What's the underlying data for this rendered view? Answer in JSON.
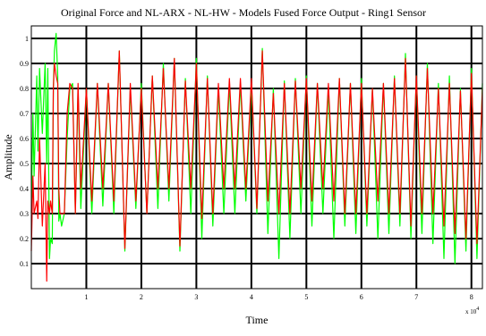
{
  "chart_data": {
    "type": "line",
    "title": "Original Force and NL-ARX - NL-HW - Models Fused Force Output - Ring1 Sensor",
    "xlabel": "Time",
    "ylabel": "Amplitude",
    "x_exponent_label": "x 10",
    "x_exponent_power": "4",
    "xlim": [
      0,
      8.2
    ],
    "ylim": [
      0,
      1.05
    ],
    "xticks": [
      1,
      2,
      3,
      4,
      5,
      6,
      7,
      8
    ],
    "xtick_labels": [
      "1",
      "2",
      "3",
      "4",
      "5",
      "6",
      "7",
      "8"
    ],
    "yticks": [
      0.1,
      0.2,
      0.3,
      0.4,
      0.5,
      0.6,
      0.7,
      0.8,
      0.9,
      1
    ],
    "ytick_labels": [
      "0.1",
      "0.2",
      "0.3",
      "0.4",
      "0.5",
      "0.6",
      "0.7",
      "0.8",
      "0.9",
      "1"
    ],
    "grid": true,
    "series": [
      {
        "color": "#00ff00",
        "x": [
          0,
          0.03,
          0.05,
          0.1,
          0.12,
          0.15,
          0.2,
          0.25,
          0.28,
          0.3,
          0.33,
          0.35,
          0.38,
          0.4,
          0.42,
          0.45,
          0.48,
          0.5,
          0.52,
          0.55,
          0.6,
          0.65,
          0.7,
          0.75,
          0.8,
          0.85,
          0.9,
          1.0,
          1.1,
          1.2,
          1.3,
          1.4,
          1.5,
          1.6,
          1.7,
          1.8,
          1.9,
          2.0,
          2.1,
          2.2,
          2.3,
          2.4,
          2.5,
          2.6,
          2.7,
          2.8,
          2.9,
          3.0,
          3.1,
          3.2,
          3.3,
          3.4,
          3.5,
          3.6,
          3.7,
          3.8,
          3.9,
          4.0,
          4.1,
          4.2,
          4.3,
          4.4,
          4.5,
          4.6,
          4.7,
          4.8,
          4.9,
          5.0,
          5.1,
          5.2,
          5.3,
          5.4,
          5.5,
          5.6,
          5.7,
          5.8,
          5.9,
          6.0,
          6.1,
          6.2,
          6.3,
          6.4,
          6.5,
          6.6,
          6.7,
          6.8,
          6.9,
          7.0,
          7.1,
          7.2,
          7.3,
          7.4,
          7.5,
          7.6,
          7.7,
          7.8,
          7.9,
          8.0,
          8.1,
          8.2
        ],
        "y": [
          0.3,
          0.7,
          0.45,
          0.85,
          0.55,
          0.88,
          0.62,
          0.9,
          0.5,
          0.88,
          0.12,
          0.2,
          0.18,
          0.8,
          0.95,
          1.02,
          0.85,
          0.27,
          0.3,
          0.25,
          0.3,
          0.6,
          0.8,
          0.82,
          0.3,
          0.8,
          0.32,
          0.8,
          0.3,
          0.82,
          0.33,
          0.82,
          0.3,
          0.95,
          0.15,
          0.8,
          0.32,
          0.82,
          0.3,
          0.85,
          0.32,
          0.9,
          0.35,
          0.92,
          0.15,
          0.84,
          0.3,
          0.92,
          0.2,
          0.85,
          0.25,
          0.8,
          0.3,
          0.82,
          0.3,
          0.82,
          0.35,
          0.82,
          0.3,
          0.96,
          0.22,
          0.8,
          0.12,
          0.83,
          0.2,
          0.84,
          0.3,
          0.85,
          0.25,
          0.82,
          0.3,
          0.8,
          0.2,
          0.84,
          0.25,
          0.82,
          0.22,
          0.84,
          0.25,
          0.8,
          0.2,
          0.82,
          0.22,
          0.85,
          0.25,
          0.94,
          0.2,
          0.85,
          0.22,
          0.9,
          0.18,
          0.82,
          0.12,
          0.85,
          0.1,
          0.8,
          0.15,
          0.88,
          0.12,
          0.82
        ]
      },
      {
        "color": "#ff0000",
        "x": [
          0,
          0.03,
          0.05,
          0.1,
          0.12,
          0.15,
          0.2,
          0.25,
          0.28,
          0.3,
          0.33,
          0.35,
          0.38,
          0.4,
          0.42,
          0.45,
          0.48,
          0.5,
          0.52,
          0.55,
          0.6,
          0.65,
          0.7,
          0.75,
          0.8,
          0.85,
          0.9,
          1.0,
          1.1,
          1.2,
          1.3,
          1.4,
          1.5,
          1.6,
          1.7,
          1.8,
          1.9,
          2.0,
          2.1,
          2.2,
          2.3,
          2.4,
          2.5,
          2.6,
          2.7,
          2.8,
          2.9,
          3.0,
          3.1,
          3.2,
          3.3,
          3.4,
          3.5,
          3.6,
          3.7,
          3.8,
          3.9,
          4.0,
          4.1,
          4.2,
          4.3,
          4.4,
          4.5,
          4.6,
          4.7,
          4.8,
          4.9,
          5.0,
          5.1,
          5.2,
          5.3,
          5.4,
          5.5,
          5.6,
          5.7,
          5.8,
          5.9,
          6.0,
          6.1,
          6.2,
          6.3,
          6.4,
          6.5,
          6.6,
          6.7,
          6.8,
          6.9,
          7.0,
          7.1,
          7.2,
          7.3,
          7.4,
          7.5,
          7.6,
          7.7,
          7.8,
          7.9,
          8.0,
          8.1,
          8.2
        ],
        "y": [
          0.15,
          0.45,
          0.3,
          0.35,
          0.28,
          0.6,
          0.25,
          0.5,
          0.03,
          0.35,
          0.3,
          0.35,
          0.3,
          0.8,
          0.9,
          0.85,
          0.82,
          0.4,
          0.3,
          0.3,
          0.3,
          0.7,
          0.82,
          0.8,
          0.3,
          0.82,
          0.4,
          0.8,
          0.35,
          0.82,
          0.4,
          0.82,
          0.35,
          0.95,
          0.16,
          0.82,
          0.35,
          0.8,
          0.3,
          0.85,
          0.4,
          0.88,
          0.4,
          0.92,
          0.17,
          0.83,
          0.4,
          0.9,
          0.28,
          0.84,
          0.3,
          0.82,
          0.4,
          0.84,
          0.4,
          0.84,
          0.4,
          0.84,
          0.32,
          0.95,
          0.35,
          0.78,
          0.3,
          0.82,
          0.3,
          0.83,
          0.4,
          0.84,
          0.35,
          0.82,
          0.4,
          0.82,
          0.35,
          0.84,
          0.3,
          0.82,
          0.3,
          0.82,
          0.3,
          0.8,
          0.35,
          0.82,
          0.3,
          0.84,
          0.3,
          0.92,
          0.25,
          0.85,
          0.3,
          0.88,
          0.3,
          0.8,
          0.25,
          0.82,
          0.22,
          0.79,
          0.2,
          0.86,
          0.18,
          0.8
        ]
      }
    ]
  }
}
